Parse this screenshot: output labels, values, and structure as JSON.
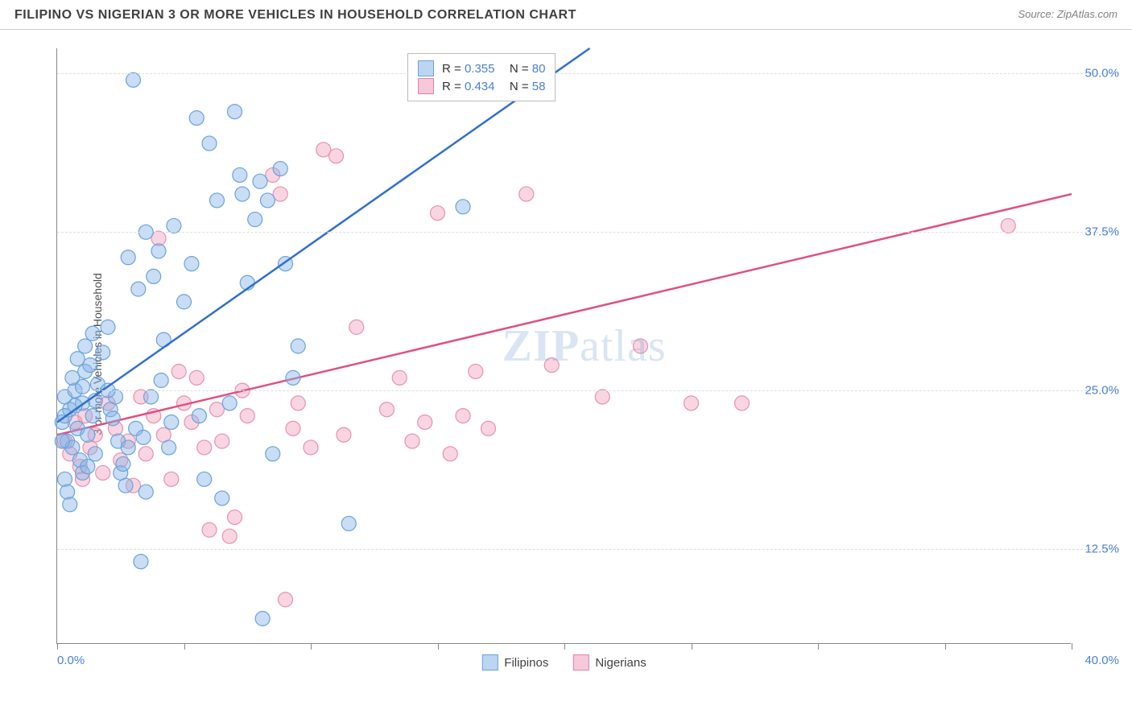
{
  "header": {
    "title": "FILIPINO VS NIGERIAN 3 OR MORE VEHICLES IN HOUSEHOLD CORRELATION CHART",
    "source": "Source: ZipAtlas.com"
  },
  "chart": {
    "type": "scatter",
    "ylabel": "3 or more Vehicles in Household",
    "background_color": "#ffffff",
    "grid_color": "#dddddd",
    "axis_color": "#888888",
    "label_color": "#4a7fd8",
    "xlim": [
      0,
      40
    ],
    "ylim": [
      5,
      52
    ],
    "xtick_positions": [
      0,
      5,
      10,
      15,
      20,
      25,
      30,
      35,
      40
    ],
    "xtick_labels": {
      "left": "0.0%",
      "right": "40.0%"
    },
    "ytick_positions": [
      12.5,
      25.0,
      37.5,
      50.0
    ],
    "ytick_labels": [
      "12.5%",
      "25.0%",
      "37.5%",
      "50.0%"
    ],
    "watermark": "ZIPatlas",
    "series": {
      "filipinos": {
        "label": "Filipinos",
        "color_fill": "rgba(135,180,230,0.45)",
        "color_stroke": "#6aa3dd",
        "swatch_fill": "#bcd5f0",
        "swatch_border": "#6aa3dd",
        "marker_radius": 9,
        "R": "0.355",
        "N": "80",
        "trend": {
          "x1": 0,
          "y1": 22.5,
          "x2": 21,
          "y2": 52,
          "stroke": "#2f6fd0",
          "width": 2.5
        },
        "points": [
          [
            0.2,
            22.5
          ],
          [
            0.3,
            24.5
          ],
          [
            0.4,
            21.0
          ],
          [
            0.5,
            23.5
          ],
          [
            0.6,
            20.5
          ],
          [
            0.7,
            25.0
          ],
          [
            0.8,
            22.0
          ],
          [
            0.9,
            19.5
          ],
          [
            1.0,
            24.0
          ],
          [
            1.1,
            26.5
          ],
          [
            1.2,
            21.5
          ],
          [
            1.3,
            27.0
          ],
          [
            1.4,
            23.0
          ],
          [
            1.5,
            20.0
          ],
          [
            1.6,
            25.5
          ],
          [
            1.8,
            28.0
          ],
          [
            2.0,
            30.0
          ],
          [
            2.1,
            23.5
          ],
          [
            2.3,
            24.5
          ],
          [
            2.5,
            18.5
          ],
          [
            2.6,
            19.2
          ],
          [
            2.7,
            17.5
          ],
          [
            2.8,
            35.5
          ],
          [
            3.0,
            49.5
          ],
          [
            3.2,
            33.0
          ],
          [
            3.3,
            11.5
          ],
          [
            3.5,
            37.5
          ],
          [
            3.5,
            17.0
          ],
          [
            3.8,
            34.0
          ],
          [
            4.0,
            36.0
          ],
          [
            4.2,
            29.0
          ],
          [
            4.4,
            20.5
          ],
          [
            4.6,
            38.0
          ],
          [
            5.0,
            32.0
          ],
          [
            5.3,
            35.0
          ],
          [
            5.5,
            46.5
          ],
          [
            5.6,
            23.0
          ],
          [
            5.8,
            18.0
          ],
          [
            6.0,
            44.5
          ],
          [
            6.3,
            40.0
          ],
          [
            6.5,
            16.5
          ],
          [
            6.8,
            24.0
          ],
          [
            7.0,
            47.0
          ],
          [
            7.2,
            42.0
          ],
          [
            7.3,
            40.5
          ],
          [
            7.5,
            33.5
          ],
          [
            7.8,
            38.5
          ],
          [
            8.0,
            41.5
          ],
          [
            8.1,
            7.0
          ],
          [
            8.3,
            40.0
          ],
          [
            8.5,
            20.0
          ],
          [
            8.8,
            42.5
          ],
          [
            9.0,
            35.0
          ],
          [
            9.3,
            26.0
          ],
          [
            9.5,
            28.5
          ],
          [
            11.5,
            14.5
          ],
          [
            16.0,
            39.5
          ],
          [
            0.3,
            18.0
          ],
          [
            0.4,
            17.0
          ],
          [
            0.5,
            16.0
          ],
          [
            1.0,
            18.5
          ],
          [
            1.2,
            19.0
          ],
          [
            0.6,
            26.0
          ],
          [
            0.8,
            27.5
          ],
          [
            1.1,
            28.5
          ],
          [
            1.4,
            29.5
          ],
          [
            0.2,
            21.0
          ],
          [
            0.3,
            23.0
          ],
          [
            0.7,
            23.8
          ],
          [
            1.0,
            25.3
          ],
          [
            1.5,
            24.2
          ],
          [
            2.0,
            25.0
          ],
          [
            2.2,
            22.8
          ],
          [
            2.4,
            21.0
          ],
          [
            2.8,
            20.5
          ],
          [
            3.1,
            22.0
          ],
          [
            3.4,
            21.3
          ],
          [
            3.7,
            24.5
          ],
          [
            4.1,
            25.8
          ],
          [
            4.5,
            22.5
          ]
        ]
      },
      "nigerians": {
        "label": "Nigerians",
        "color_fill": "rgba(240,150,180,0.40)",
        "color_stroke": "#e791b0",
        "swatch_fill": "#f5c9d9",
        "swatch_border": "#e283a8",
        "marker_radius": 9,
        "R": "0.434",
        "N": "58",
        "trend": {
          "x1": 0,
          "y1": 21.5,
          "x2": 40,
          "y2": 40.5,
          "stroke": "#e0507f",
          "width": 2.5
        },
        "points": [
          [
            0.3,
            21.0
          ],
          [
            0.5,
            20.0
          ],
          [
            0.7,
            22.5
          ],
          [
            0.9,
            19.0
          ],
          [
            1.1,
            23.0
          ],
          [
            1.3,
            20.5
          ],
          [
            1.5,
            21.5
          ],
          [
            1.8,
            18.5
          ],
          [
            2.0,
            24.0
          ],
          [
            2.3,
            22.0
          ],
          [
            2.5,
            19.5
          ],
          [
            2.8,
            21.0
          ],
          [
            3.0,
            17.5
          ],
          [
            3.3,
            24.5
          ],
          [
            3.5,
            20.0
          ],
          [
            3.8,
            23.0
          ],
          [
            4.0,
            37.0
          ],
          [
            4.2,
            21.5
          ],
          [
            4.5,
            18.0
          ],
          [
            4.8,
            26.5
          ],
          [
            5.0,
            24.0
          ],
          [
            5.3,
            22.5
          ],
          [
            5.5,
            26.0
          ],
          [
            5.8,
            20.5
          ],
          [
            6.0,
            14.0
          ],
          [
            6.3,
            23.5
          ],
          [
            6.5,
            21.0
          ],
          [
            6.8,
            13.5
          ],
          [
            7.0,
            15.0
          ],
          [
            7.3,
            25.0
          ],
          [
            7.5,
            23.0
          ],
          [
            8.5,
            42.0
          ],
          [
            8.8,
            40.5
          ],
          [
            9.0,
            8.5
          ],
          [
            9.3,
            22.0
          ],
          [
            9.5,
            24.0
          ],
          [
            10.0,
            20.5
          ],
          [
            10.5,
            44.0
          ],
          [
            11.0,
            43.5
          ],
          [
            11.3,
            21.5
          ],
          [
            11.8,
            30.0
          ],
          [
            13.0,
            23.5
          ],
          [
            13.5,
            26.0
          ],
          [
            14.0,
            21.0
          ],
          [
            14.5,
            22.5
          ],
          [
            15.0,
            39.0
          ],
          [
            15.5,
            20.0
          ],
          [
            16.0,
            23.0
          ],
          [
            16.5,
            26.5
          ],
          [
            17.0,
            22.0
          ],
          [
            18.5,
            40.5
          ],
          [
            19.5,
            27.0
          ],
          [
            21.5,
            24.5
          ],
          [
            23.0,
            28.5
          ],
          [
            25.0,
            24.0
          ],
          [
            27.0,
            24.0
          ],
          [
            37.5,
            38.0
          ],
          [
            1.0,
            18.0
          ]
        ]
      }
    }
  },
  "legend_bottom": [
    {
      "key": "filipinos",
      "label": "Filipinos"
    },
    {
      "key": "nigerians",
      "label": "Nigerians"
    }
  ]
}
